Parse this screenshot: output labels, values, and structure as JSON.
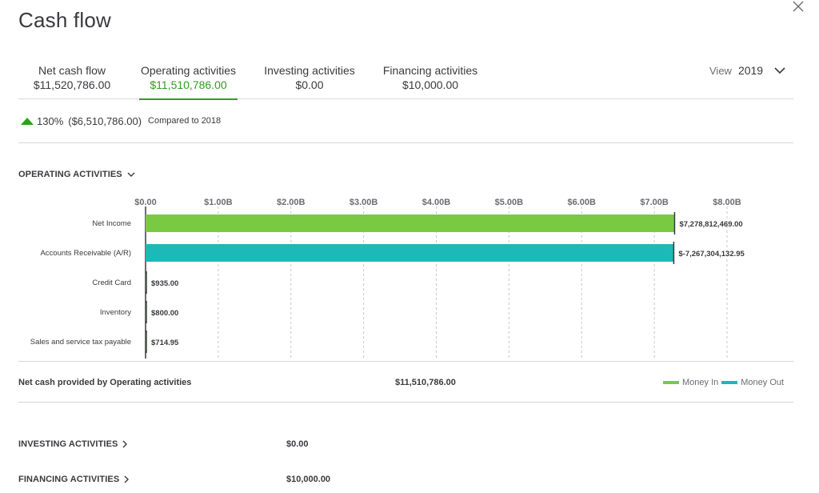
{
  "title": "Cash flow",
  "tabs": [
    {
      "label": "Net cash flow",
      "value": "$11,520,786.00"
    },
    {
      "label": "Operating activities",
      "value": "$11,510,786.00"
    },
    {
      "label": "Investing activities",
      "value": "$0.00"
    },
    {
      "label": "Financing activities",
      "value": "$10,000.00"
    }
  ],
  "view": {
    "label": "View",
    "year": "2019"
  },
  "compare": {
    "percent": "130%",
    "amount": "($6,510,786.00)",
    "text": "Compared to 2018",
    "color": "#2ca01c"
  },
  "operating": {
    "heading": "OPERATING ACTIVITIES",
    "net_label": "Net cash provided by Operating activities",
    "net_value": "$11,510,786.00"
  },
  "legend": {
    "money_in": "Money In",
    "money_out": "Money Out"
  },
  "investing": {
    "heading": "INVESTING ACTIVITIES",
    "value": "$0.00"
  },
  "financing": {
    "heading": "FINANCING ACTIVITIES",
    "value": "$10,000.00"
  },
  "colors": {
    "money_in": "#7ac943",
    "money_out": "#1db8b8",
    "accent": "#2ca01c"
  },
  "chart_data": {
    "type": "bar",
    "orientation": "horizontal",
    "categories": [
      "Net Income",
      "Accounts Receivable (A/R)",
      "Credit Card",
      "Inventory",
      "Sales and service tax payable"
    ],
    "values": [
      7278812469.0,
      -7267304132.95,
      935.0,
      800.0,
      714.95
    ],
    "value_labels": [
      "$7,278,812,469.00",
      "$-7,267,304,132.95",
      "$935.00",
      "$800.00",
      "$714.95"
    ],
    "series_type": [
      "money_in",
      "money_out",
      "money_in",
      "money_in",
      "money_in"
    ],
    "xticks": [
      "$0.00",
      "$1.00B",
      "$2.00B",
      "$3.00B",
      "$4.00B",
      "$5.00B",
      "$6.00B",
      "$7.00B",
      "$8.00B"
    ],
    "xlim": [
      0,
      8000000000
    ],
    "grid": true,
    "legend": "bottom-right"
  }
}
